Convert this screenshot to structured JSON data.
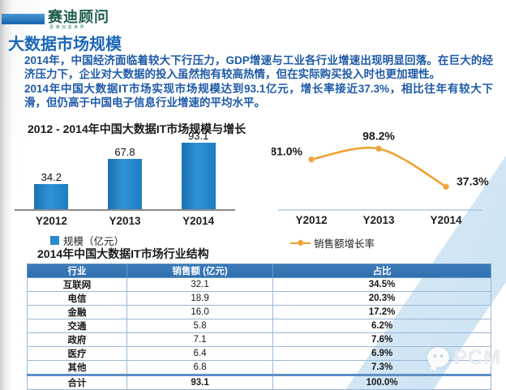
{
  "header": {
    "logo_text": "赛迪顾问",
    "logo_tagline": "思维创造世界"
  },
  "page": {
    "title": "大数据市场规模",
    "paragraph1": "2014年，中国经济面临着较大下行压力，GDP增速与工业各行业增速出现明显回落。在巨大的经济压力下，企业对大数据的投入虽然抱有较高热情，但在实际购买投入时也更加理性。",
    "paragraph2": "2014年中国大数据IT市场实现市场规模达到93.1亿元，增长率接近37.3%，相比往年有较大下滑，但仍高于中国电子信息行业增速的平均水平。"
  },
  "colors": {
    "accent_blue": "#1b67b8",
    "body_text_blue": "#1e5aa8",
    "bar_blue": "#2b8ad0",
    "line_orange": "#f0a232",
    "table_header_blue": "#3474b4",
    "diag_band_blue": "#d9e9f5"
  },
  "watermark": {
    "label": "PCM",
    "icon": "wechat-icon"
  },
  "chart_data": [
    {
      "type": "bar",
      "title": "2012 - 2014年中国大数据IT市场规模与增长",
      "categories": [
        "Y2012",
        "Y2013",
        "Y2014"
      ],
      "values": [
        34.2,
        67.8,
        93.1
      ],
      "value_labels": [
        "34.2",
        "67.8",
        "93.1"
      ],
      "legend": "规模（亿元）",
      "ylabel": "",
      "xlabel": "",
      "ylim": [
        0,
        100
      ],
      "grid": false,
      "legend_position": "bottom-left",
      "bar_color": "#2b8ad0"
    },
    {
      "type": "line",
      "title": "",
      "categories": [
        "Y2012",
        "Y2013",
        "Y2014"
      ],
      "values": [
        81.0,
        98.2,
        37.3
      ],
      "value_labels": [
        "81.0%",
        "98.2%",
        "37.3%"
      ],
      "legend": "销售额增长率",
      "ylim": [
        0,
        110
      ],
      "grid": false,
      "legend_position": "bottom-left",
      "line_color": "#f0a232",
      "marker": "circle"
    },
    {
      "type": "table",
      "title": "2014年中国大数据IT市场行业结构",
      "columns": [
        "行业",
        "销售额 (亿元)",
        "占比"
      ],
      "rows": [
        [
          "互联网",
          "32.1",
          "34.5%"
        ],
        [
          "电信",
          "18.9",
          "20.3%"
        ],
        [
          "金融",
          "16.0",
          "17.2%"
        ],
        [
          "交通",
          "5.8",
          "6.2%"
        ],
        [
          "政府",
          "7.1",
          "7.6%"
        ],
        [
          "医疗",
          "6.4",
          "6.9%"
        ],
        [
          "其他",
          "6.8",
          "7.3%"
        ]
      ],
      "total_row": [
        "合计",
        "93.1",
        "100.0%"
      ]
    }
  ]
}
